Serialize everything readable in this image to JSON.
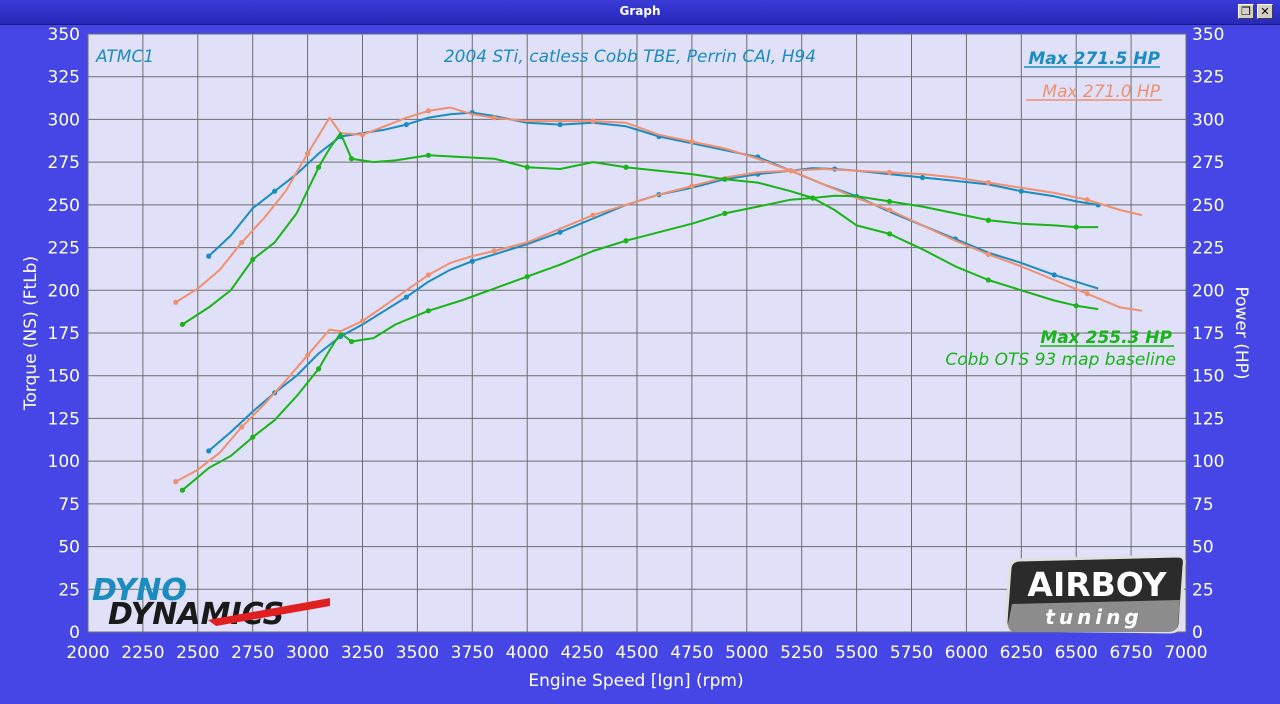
{
  "window": {
    "title": "Graph",
    "restore_icon": "restore-icon",
    "close_icon": "close-icon",
    "close_glyph": "✕",
    "restore_glyph": "❐"
  },
  "logos": {
    "left": {
      "line1": "DYNO",
      "line2": "DYNAMICS"
    },
    "right": {
      "line1": "AIRBOY",
      "line2": "tuning"
    }
  },
  "chart_data": {
    "type": "line",
    "title": "2004 STi, catless Cobb TBE, Perrin CAI, H94",
    "run_label": "ATMC1",
    "xlabel": "Engine Speed [Ign] (rpm)",
    "ylabel_left": "Torque (NS) (FtLb)",
    "ylabel_right": "Power (HP)",
    "xlim": [
      2000,
      7000
    ],
    "ylim": [
      0,
      350
    ],
    "x_ticks": [
      2000,
      2250,
      2500,
      2750,
      3000,
      3250,
      3500,
      3750,
      4000,
      4250,
      4500,
      4750,
      5000,
      5250,
      5500,
      5750,
      6000,
      6250,
      6500,
      6750,
      7000
    ],
    "y_ticks": [
      0,
      25,
      50,
      75,
      100,
      125,
      150,
      175,
      200,
      225,
      250,
      275,
      300,
      325,
      350
    ],
    "grid": true,
    "annotations": [
      {
        "text": "Max 271.5 HP",
        "color": "#1a8cc0",
        "underline": true
      },
      {
        "text": "Max 271.0 HP",
        "color": "#f09070",
        "underline": true
      },
      {
        "text": "Max 255.3 HP",
        "color": "#18b418",
        "underline": true
      },
      {
        "text": "Cobb OTS 93 map baseline",
        "color": "#18b418",
        "underline": false
      }
    ],
    "colors": {
      "background": "#e0e0f8",
      "frame": "#4646e6",
      "grid": "#6e6e6e",
      "blue": "#1a8cc0",
      "orange": "#f09070",
      "green": "#18b418"
    },
    "series": [
      {
        "color": "#1a8cc0",
        "kind": "torque",
        "x": [
          2550,
          2650,
          2750,
          2850,
          2950,
          3050,
          3150,
          3250,
          3350,
          3450,
          3550,
          3650,
          3750,
          3850,
          4000,
          4150,
          4300,
          4450,
          4600,
          4750,
          4900,
          5050,
          5200,
          5350,
          5500,
          5650,
          5800,
          5950,
          6100,
          6250,
          6400,
          6500,
          6600
        ],
        "y": [
          220,
          232,
          248,
          258,
          268,
          280,
          290,
          292,
          294,
          297,
          301,
          303,
          304,
          302,
          298,
          297,
          298,
          296,
          290,
          286,
          282,
          278,
          270,
          262,
          255,
          246,
          238,
          230,
          222,
          216,
          209,
          205,
          201
        ]
      },
      {
        "color": "#1a8cc0",
        "kind": "power",
        "x": [
          2550,
          2650,
          2750,
          2850,
          2950,
          3050,
          3150,
          3250,
          3350,
          3450,
          3550,
          3650,
          3750,
          3850,
          4000,
          4150,
          4300,
          4450,
          4600,
          4750,
          4900,
          5050,
          5200,
          5300,
          5400,
          5500,
          5650,
          5800,
          5950,
          6100,
          6250,
          6400,
          6500,
          6600
        ],
        "y": [
          106,
          117,
          129,
          140,
          150,
          163,
          173,
          180,
          188,
          196,
          205,
          212,
          217,
          221,
          227,
          234,
          242,
          250,
          256,
          260,
          265,
          268,
          270,
          271.5,
          271,
          270,
          268,
          266,
          264,
          262,
          258,
          255,
          252,
          250
        ]
      },
      {
        "color": "#f09070",
        "kind": "torque",
        "x": [
          2400,
          2500,
          2600,
          2700,
          2800,
          2900,
          3000,
          3100,
          3150,
          3250,
          3350,
          3450,
          3550,
          3650,
          3750,
          3850,
          4000,
          4150,
          4300,
          4450,
          4600,
          4750,
          4900,
          5050,
          5200,
          5350,
          5500,
          5650,
          5800,
          5950,
          6100,
          6250,
          6400,
          6550,
          6700,
          6800
        ],
        "y": [
          193,
          201,
          212,
          228,
          242,
          258,
          280,
          301,
          292,
          291,
          296,
          301,
          305,
          307,
          303,
          301,
          299,
          299,
          299,
          298,
          291,
          287,
          283,
          277,
          270,
          262,
          254,
          247,
          238,
          229,
          221,
          214,
          206,
          198,
          190,
          188
        ]
      },
      {
        "color": "#f09070",
        "kind": "power",
        "x": [
          2400,
          2500,
          2600,
          2700,
          2800,
          2900,
          3000,
          3100,
          3150,
          3250,
          3350,
          3450,
          3550,
          3650,
          3750,
          3850,
          4000,
          4150,
          4300,
          4450,
          4600,
          4750,
          4900,
          5050,
          5200,
          5350,
          5500,
          5650,
          5800,
          5950,
          6100,
          6250,
          6400,
          6550,
          6700,
          6800
        ],
        "y": [
          88,
          95,
          105,
          120,
          133,
          147,
          162,
          177,
          176,
          182,
          191,
          200,
          209,
          216,
          220,
          223,
          228,
          236,
          244,
          250,
          256,
          261,
          266,
          269,
          270,
          271,
          270,
          269,
          268,
          266,
          263,
          260,
          257,
          253,
          247,
          244
        ]
      },
      {
        "color": "#18b418",
        "kind": "torque",
        "x": [
          2430,
          2550,
          2650,
          2750,
          2850,
          2950,
          3050,
          3100,
          3150,
          3200,
          3300,
          3400,
          3550,
          3700,
          3850,
          4000,
          4150,
          4300,
          4450,
          4600,
          4750,
          4900,
          5050,
          5200,
          5300,
          5400,
          5500,
          5650,
          5800,
          5950,
          6100,
          6250,
          6400,
          6500,
          6600
        ],
        "y": [
          180,
          190,
          200,
          218,
          228,
          245,
          272,
          283,
          292,
          277,
          275,
          276,
          279,
          278,
          277,
          272,
          271,
          275,
          272,
          270,
          268,
          265,
          263,
          258,
          254,
          247,
          238,
          233,
          224,
          214,
          206,
          200,
          194,
          191,
          189
        ]
      },
      {
        "color": "#18b418",
        "kind": "power",
        "x": [
          2430,
          2550,
          2650,
          2750,
          2850,
          2950,
          3050,
          3100,
          3150,
          3200,
          3300,
          3400,
          3550,
          3700,
          3850,
          4000,
          4150,
          4300,
          4450,
          4600,
          4750,
          4900,
          5050,
          5200,
          5300,
          5400,
          5500,
          5650,
          5800,
          5950,
          6100,
          6250,
          6400,
          6500,
          6600
        ],
        "y": [
          83,
          96,
          103,
          114,
          124,
          138,
          154,
          165,
          175,
          170,
          172,
          180,
          188,
          194,
          201,
          208,
          215,
          223,
          229,
          234,
          239,
          245,
          249,
          253,
          254,
          255.3,
          255,
          252,
          249,
          245,
          241,
          239,
          238,
          237,
          237
        ]
      }
    ]
  }
}
